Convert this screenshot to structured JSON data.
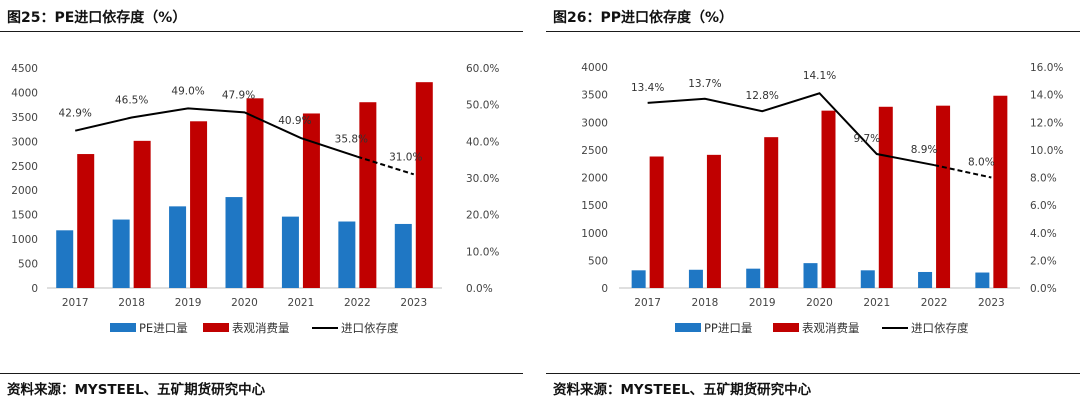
{
  "chart_data": [
    {
      "type": "bar",
      "title": "图25：PE进口依存度（%）",
      "source": "资料来源：MYSTEEL、五矿期货研究中心",
      "categories": [
        "2017",
        "2018",
        "2019",
        "2020",
        "2021",
        "2022",
        "2023"
      ],
      "series": [
        {
          "name": "PE进口量",
          "kind": "bar",
          "axis": "left",
          "color": "#1f77c4",
          "values": [
            1180,
            1400,
            1670,
            1860,
            1460,
            1360,
            1310
          ]
        },
        {
          "name": "表观消费量",
          "kind": "bar",
          "axis": "left",
          "color": "#c00000",
          "values": [
            2740,
            3010,
            3410,
            3880,
            3570,
            3800,
            4210
          ]
        },
        {
          "name": "进口依存度",
          "kind": "line",
          "axis": "right",
          "color": "#000000",
          "dashed_from_index": 5,
          "values": [
            42.9,
            46.5,
            49.0,
            47.9,
            40.9,
            35.8,
            31.0
          ]
        }
      ],
      "data_labels": [
        "42.9%",
        "46.5%",
        "49.0%",
        "47.9%",
        "40.9%",
        "35.8%",
        "31.0%"
      ],
      "left_axis": {
        "min": 0,
        "max": 4500,
        "step": 500,
        "ticks": [
          "0",
          "500",
          "1000",
          "1500",
          "2000",
          "2500",
          "3000",
          "3500",
          "4000",
          "4500"
        ]
      },
      "right_axis": {
        "min": 0,
        "max": 60,
        "step": 10,
        "ticks": [
          "0.0%",
          "10.0%",
          "20.0%",
          "30.0%",
          "40.0%",
          "50.0%",
          "60.0%"
        ]
      },
      "legend_position": "bottom",
      "grid": false
    },
    {
      "type": "bar",
      "title": "图26：PP进口依存度（%）",
      "source": "资料来源：MYSTEEL、五矿期货研究中心",
      "categories": [
        "2017",
        "2018",
        "2019",
        "2020",
        "2021",
        "2022",
        "2023"
      ],
      "series": [
        {
          "name": "PP进口量",
          "kind": "bar",
          "axis": "left",
          "color": "#1f77c4",
          "values": [
            320,
            330,
            350,
            450,
            320,
            290,
            280
          ]
        },
        {
          "name": "表观消费量",
          "kind": "bar",
          "axis": "left",
          "color": "#c00000",
          "values": [
            2380,
            2410,
            2730,
            3210,
            3280,
            3300,
            3480
          ]
        },
        {
          "name": "进口依存度",
          "kind": "line",
          "axis": "right",
          "color": "#000000",
          "dashed_from_index": 5,
          "values": [
            13.4,
            13.7,
            12.8,
            14.1,
            9.7,
            8.9,
            8.0
          ]
        }
      ],
      "data_labels": [
        "13.4%",
        "13.7%",
        "12.8%",
        "14.1%",
        "9.7%",
        "8.9%",
        "8.0%"
      ],
      "left_axis": {
        "min": 0,
        "max": 4000,
        "step": 500,
        "ticks": [
          "0",
          "500",
          "1000",
          "1500",
          "2000",
          "2500",
          "3000",
          "3500",
          "4000"
        ]
      },
      "right_axis": {
        "min": 0,
        "max": 16,
        "step": 2,
        "ticks": [
          "0.0%",
          "2.0%",
          "4.0%",
          "6.0%",
          "8.0%",
          "10.0%",
          "12.0%",
          "14.0%",
          "16.0%"
        ]
      },
      "legend_position": "bottom",
      "grid": false
    }
  ]
}
